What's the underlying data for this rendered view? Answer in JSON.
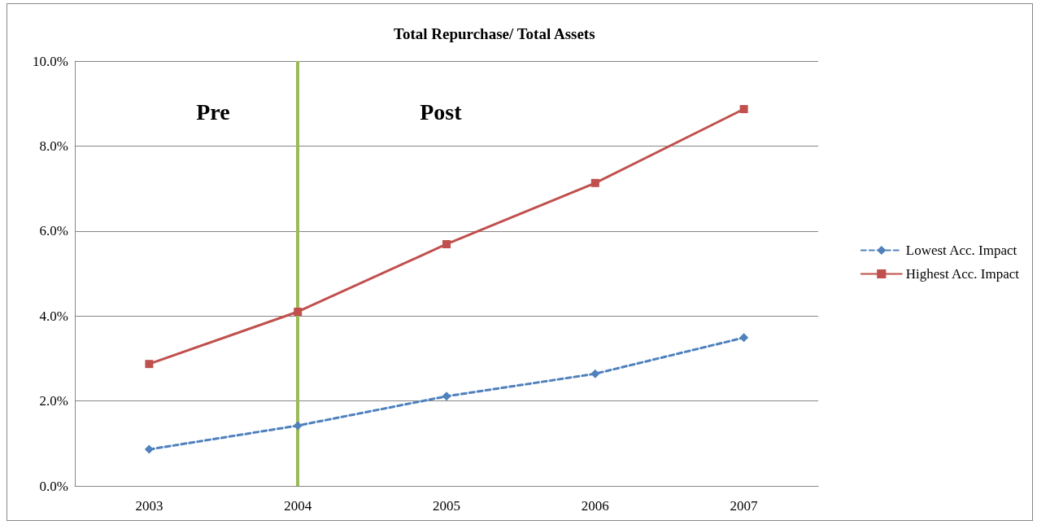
{
  "chart_data": {
    "type": "line",
    "title": "Total Repurchase/ Total Assets",
    "categories": [
      "2003",
      "2004",
      "2005",
      "2006",
      "2007"
    ],
    "series": [
      {
        "name": "Lowest Acc. Impact",
        "color": "#4f81bd",
        "marker": "diamond",
        "line_style": "dashed",
        "values": [
          0.86,
          1.42,
          2.11,
          2.64,
          3.49
        ]
      },
      {
        "name": "Highest Acc. Impact",
        "color": "#c0504d",
        "marker": "square",
        "line_style": "solid",
        "values": [
          2.87,
          4.1,
          5.69,
          7.13,
          8.87
        ]
      }
    ],
    "ylim": [
      0,
      10
    ],
    "yticks": [
      {
        "value": 0,
        "label": "0.0%"
      },
      {
        "value": 2,
        "label": "2.0%"
      },
      {
        "value": 4,
        "label": "4.0%"
      },
      {
        "value": 6,
        "label": "6.0%"
      },
      {
        "value": 8,
        "label": "8.0%"
      },
      {
        "value": 10,
        "label": "10.0%"
      }
    ],
    "grid": "y",
    "legend": "right",
    "ref_lines": [
      {
        "axis": "x",
        "value": "2004",
        "color": "#9bbb59"
      }
    ],
    "annotations": [
      "Pre",
      "Post"
    ]
  }
}
